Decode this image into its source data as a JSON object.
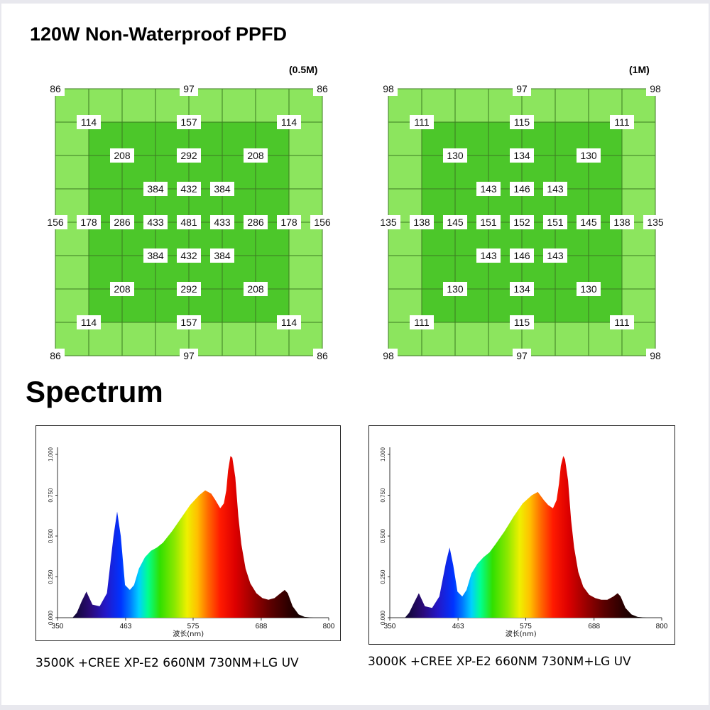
{
  "title": "120W Non-Waterproof PPFD",
  "section_title": "Spectrum",
  "ppfd_maps": [
    {
      "height_label": "(0.5M)",
      "colors": {
        "outer": "#8ce55e",
        "inner": "#4cc72a",
        "grid_line": "#3c7a22"
      },
      "labels": [
        {
          "row": 0,
          "col": 0,
          "value": "86"
        },
        {
          "row": 0,
          "col": 4,
          "value": "97"
        },
        {
          "row": 0,
          "col": 8,
          "value": "86"
        },
        {
          "row": 1,
          "col": 1,
          "value": "114"
        },
        {
          "row": 1,
          "col": 4,
          "value": "157"
        },
        {
          "row": 1,
          "col": 7,
          "value": "114"
        },
        {
          "row": 2,
          "col": 2,
          "value": "208"
        },
        {
          "row": 2,
          "col": 4,
          "value": "292"
        },
        {
          "row": 2,
          "col": 6,
          "value": "208"
        },
        {
          "row": 3,
          "col": 3,
          "value": "384"
        },
        {
          "row": 3,
          "col": 4,
          "value": "432"
        },
        {
          "row": 3,
          "col": 5,
          "value": "384"
        },
        {
          "row": 4,
          "col": 0,
          "value": "156"
        },
        {
          "row": 4,
          "col": 1,
          "value": "178"
        },
        {
          "row": 4,
          "col": 2,
          "value": "286"
        },
        {
          "row": 4,
          "col": 3,
          "value": "433"
        },
        {
          "row": 4,
          "col": 4,
          "value": "481"
        },
        {
          "row": 4,
          "col": 5,
          "value": "433"
        },
        {
          "row": 4,
          "col": 6,
          "value": "286"
        },
        {
          "row": 4,
          "col": 7,
          "value": "178"
        },
        {
          "row": 4,
          "col": 8,
          "value": "156"
        },
        {
          "row": 5,
          "col": 3,
          "value": "384"
        },
        {
          "row": 5,
          "col": 4,
          "value": "432"
        },
        {
          "row": 5,
          "col": 5,
          "value": "384"
        },
        {
          "row": 6,
          "col": 2,
          "value": "208"
        },
        {
          "row": 6,
          "col": 4,
          "value": "292"
        },
        {
          "row": 6,
          "col": 6,
          "value": "208"
        },
        {
          "row": 7,
          "col": 1,
          "value": "114"
        },
        {
          "row": 7,
          "col": 4,
          "value": "157"
        },
        {
          "row": 7,
          "col": 7,
          "value": "114"
        },
        {
          "row": 8,
          "col": 0,
          "value": "86"
        },
        {
          "row": 8,
          "col": 4,
          "value": "97"
        },
        {
          "row": 8,
          "col": 8,
          "value": "86"
        }
      ]
    },
    {
      "height_label": "(1M)",
      "colors": {
        "outer": "#8ce55e",
        "inner": "#4cc72a",
        "grid_line": "#3c7a22"
      },
      "labels": [
        {
          "row": 0,
          "col": 0,
          "value": "98"
        },
        {
          "row": 0,
          "col": 4,
          "value": "97"
        },
        {
          "row": 0,
          "col": 8,
          "value": "98"
        },
        {
          "row": 1,
          "col": 1,
          "value": "111"
        },
        {
          "row": 1,
          "col": 4,
          "value": "115"
        },
        {
          "row": 1,
          "col": 7,
          "value": "111"
        },
        {
          "row": 2,
          "col": 2,
          "value": "130"
        },
        {
          "row": 2,
          "col": 4,
          "value": "134"
        },
        {
          "row": 2,
          "col": 6,
          "value": "130"
        },
        {
          "row": 3,
          "col": 3,
          "value": "143"
        },
        {
          "row": 3,
          "col": 4,
          "value": "146"
        },
        {
          "row": 3,
          "col": 5,
          "value": "143"
        },
        {
          "row": 4,
          "col": 0,
          "value": "135"
        },
        {
          "row": 4,
          "col": 1,
          "value": "138"
        },
        {
          "row": 4,
          "col": 2,
          "value": "145"
        },
        {
          "row": 4,
          "col": 3,
          "value": "151"
        },
        {
          "row": 4,
          "col": 4,
          "value": "152"
        },
        {
          "row": 4,
          "col": 5,
          "value": "151"
        },
        {
          "row": 4,
          "col": 6,
          "value": "145"
        },
        {
          "row": 4,
          "col": 7,
          "value": "138"
        },
        {
          "row": 4,
          "col": 8,
          "value": "135"
        },
        {
          "row": 5,
          "col": 3,
          "value": "143"
        },
        {
          "row": 5,
          "col": 4,
          "value": "146"
        },
        {
          "row": 5,
          "col": 5,
          "value": "143"
        },
        {
          "row": 6,
          "col": 2,
          "value": "130"
        },
        {
          "row": 6,
          "col": 4,
          "value": "134"
        },
        {
          "row": 6,
          "col": 6,
          "value": "130"
        },
        {
          "row": 7,
          "col": 1,
          "value": "111"
        },
        {
          "row": 7,
          "col": 4,
          "value": "115"
        },
        {
          "row": 7,
          "col": 7,
          "value": "111"
        },
        {
          "row": 8,
          "col": 0,
          "value": "98"
        },
        {
          "row": 8,
          "col": 4,
          "value": "97"
        },
        {
          "row": 8,
          "col": 8,
          "value": "98"
        }
      ]
    }
  ],
  "chart_data": [
    {
      "type": "area",
      "caption": "3500K +CREE XP-E2 660NM 730NM+LG UV",
      "xlabel": "波长(nm)",
      "ylabel": "",
      "xlim": [
        350,
        800
      ],
      "ylim": [
        0,
        1
      ],
      "x_ticks": [
        "350",
        "463",
        "575",
        "688",
        "800"
      ],
      "y_ticks": [
        "0.000",
        "0.250",
        "0.500",
        "0.750",
        "1.000"
      ],
      "grid": false,
      "series": [
        {
          "x": [
            350,
            375,
            382,
            390,
            398,
            408,
            420,
            432,
            443,
            449,
            455,
            462,
            470,
            477,
            485,
            495,
            505,
            515,
            525,
            540,
            555,
            570,
            585,
            595,
            605,
            612,
            620,
            626,
            630,
            633,
            637,
            640,
            645,
            650,
            655,
            662,
            670,
            680,
            690,
            700,
            710,
            720,
            727,
            732,
            740,
            750,
            760,
            775,
            800
          ],
          "y": [
            0.0,
            0.0,
            0.03,
            0.1,
            0.16,
            0.08,
            0.07,
            0.15,
            0.5,
            0.65,
            0.5,
            0.2,
            0.17,
            0.2,
            0.3,
            0.37,
            0.41,
            0.43,
            0.46,
            0.53,
            0.61,
            0.69,
            0.75,
            0.78,
            0.76,
            0.72,
            0.67,
            0.7,
            0.78,
            0.9,
            0.99,
            0.98,
            0.86,
            0.62,
            0.45,
            0.3,
            0.21,
            0.15,
            0.12,
            0.11,
            0.12,
            0.15,
            0.17,
            0.15,
            0.07,
            0.02,
            0.005,
            0.0,
            0.0
          ]
        }
      ]
    },
    {
      "type": "area",
      "caption": "3000K +CREE XP-E2 660NM 730NM+LG UV",
      "xlabel": "波长(nm)",
      "ylabel": "",
      "xlim": [
        350,
        800
      ],
      "ylim": [
        0,
        1
      ],
      "x_ticks": [
        "350",
        "463",
        "575",
        "688",
        "800"
      ],
      "y_ticks": [
        "0.000",
        "0.250",
        "0.500",
        "0.750",
        "1.000"
      ],
      "grid": false,
      "series": [
        {
          "x": [
            350,
            375,
            382,
            390,
            398,
            408,
            420,
            432,
            443,
            449,
            455,
            462,
            470,
            477,
            485,
            495,
            505,
            515,
            525,
            540,
            555,
            570,
            585,
            595,
            605,
            612,
            620,
            626,
            630,
            633,
            637,
            640,
            645,
            650,
            655,
            662,
            670,
            680,
            690,
            700,
            710,
            720,
            727,
            732,
            740,
            750,
            760,
            775,
            800
          ],
          "y": [
            0.0,
            0.0,
            0.03,
            0.09,
            0.15,
            0.07,
            0.06,
            0.13,
            0.34,
            0.43,
            0.32,
            0.16,
            0.13,
            0.17,
            0.27,
            0.33,
            0.37,
            0.4,
            0.45,
            0.53,
            0.62,
            0.7,
            0.75,
            0.77,
            0.72,
            0.69,
            0.67,
            0.72,
            0.82,
            0.93,
            0.99,
            0.97,
            0.84,
            0.6,
            0.43,
            0.28,
            0.19,
            0.14,
            0.12,
            0.11,
            0.11,
            0.13,
            0.15,
            0.13,
            0.06,
            0.02,
            0.005,
            0.0,
            0.0
          ]
        }
      ]
    }
  ]
}
